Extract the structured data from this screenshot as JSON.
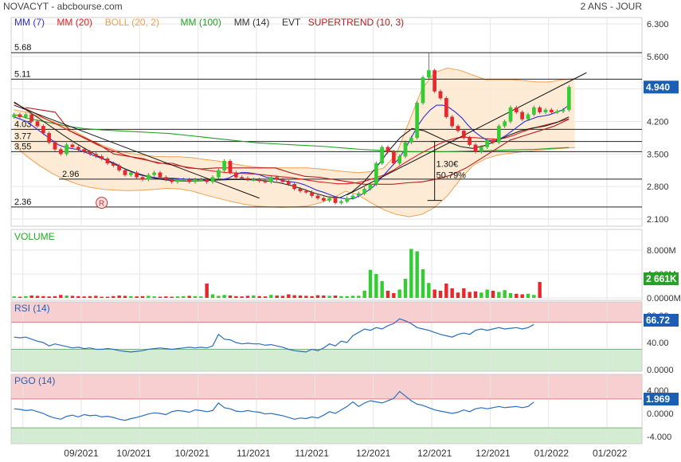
{
  "header": {
    "title": "NOVACYT - abcbourse.com",
    "period": "2 ANS - JOUR"
  },
  "colors": {
    "grid": "#e6e6e6",
    "up": "#33cc33",
    "down": "#e8262c",
    "mm7": "#3030d0",
    "mm20": "#e02020",
    "boll": "#f0a050",
    "mm100": "#20a020",
    "mm14": "#000000",
    "supertrend": "#b02020",
    "value_box": "#1a5fb4",
    "volume_box": "#2aa02a",
    "rsi_line": "#2a6ec0",
    "overbought_fill": "#f7cfd0",
    "oversold_fill": "#d4ecd2",
    "axis_text": "#333333"
  },
  "chart_data": [
    {
      "type": "candlestick",
      "panel": "price",
      "legend": [
        {
          "label": "MM (7)",
          "color": "#3030d0"
        },
        {
          "label": "MM (20)",
          "color": "#e02020"
        },
        {
          "label": "BOLL (20, 2)",
          "color": "#f0a050"
        },
        {
          "label": "MM (100)",
          "color": "#20a020"
        },
        {
          "label": "MM (14)",
          "color": "#333333"
        },
        {
          "label": "EVT",
          "color": "#333333"
        },
        {
          "label": "SUPERTREND (10, 3)",
          "color": "#b02020"
        }
      ],
      "y_ticks": [
        "6.300",
        "5.600",
        "4.900",
        "4.200",
        "3.500",
        "2.800",
        "2.100"
      ],
      "ylim": [
        2.1,
        6.3
      ],
      "last_value": "4.940",
      "levels": [
        {
          "label": "5.68",
          "value": 5.68
        },
        {
          "label": "5.11",
          "value": 5.11
        },
        {
          "label": "4.03",
          "value": 4.03
        },
        {
          "label": "3.77",
          "value": 3.77
        },
        {
          "label": "3.55",
          "value": 3.55
        },
        {
          "label": "2.96",
          "value": 2.96
        },
        {
          "label": "2.36",
          "value": 2.36
        }
      ],
      "annotations": [
        {
          "label": "1.30€",
          "x": 72,
          "y": 3.22
        },
        {
          "label": "50.79%",
          "x": 72,
          "y": 2.98
        },
        {
          "label": "R",
          "x": 15,
          "y": 2.45
        }
      ],
      "closes": [
        4.35,
        4.3,
        4.35,
        4.2,
        4.1,
        3.95,
        3.75,
        3.6,
        3.5,
        3.7,
        3.65,
        3.6,
        3.55,
        3.5,
        3.45,
        3.4,
        3.3,
        3.25,
        3.15,
        3.05,
        3.1,
        3.0,
        2.95,
        3.05,
        3.1,
        3.0,
        2.95,
        2.9,
        2.95,
        2.95,
        2.9,
        2.95,
        2.95,
        2.9,
        3.0,
        3.15,
        3.35,
        3.1,
        3.0,
        2.98,
        2.95,
        2.95,
        2.92,
        2.9,
        3.0,
        2.95,
        2.9,
        2.85,
        2.75,
        2.7,
        2.68,
        2.6,
        2.55,
        2.5,
        2.55,
        2.45,
        2.48,
        2.55,
        2.6,
        2.65,
        2.75,
        2.85,
        3.3,
        3.65,
        3.55,
        3.3,
        3.45,
        3.75,
        3.85,
        4.6,
        5.15,
        5.3,
        4.85,
        4.7,
        4.3,
        4.1,
        4.0,
        3.85,
        3.7,
        3.55,
        3.65,
        3.8,
        3.75,
        4.1,
        4.2,
        4.5,
        4.4,
        4.25,
        4.35,
        4.5,
        4.4,
        4.45,
        4.4,
        4.42,
        4.45,
        4.94
      ],
      "mm7": [
        4.3,
        4.25,
        4.2,
        4.1,
        4.0,
        3.9,
        3.8,
        3.7,
        3.65,
        3.62,
        3.6,
        3.55,
        3.5,
        3.45,
        3.4,
        3.35,
        3.3,
        3.22,
        3.15,
        3.1,
        3.05,
        3.02,
        3.0,
        2.98,
        2.98,
        2.98,
        2.97,
        2.96,
        2.95,
        2.95,
        2.95,
        2.94,
        2.94,
        2.95,
        2.98,
        3.05,
        3.1,
        3.1,
        3.08,
        3.05,
        3.0,
        2.98,
        2.95,
        2.92,
        2.9,
        2.88,
        2.84,
        2.78,
        2.72,
        2.68,
        2.63,
        2.58,
        2.55,
        2.53,
        2.55,
        2.62,
        2.7,
        2.8,
        2.95,
        3.1,
        3.25,
        3.4,
        3.6,
        3.85,
        4.1,
        4.3,
        4.45,
        4.55,
        4.55,
        4.5,
        4.4,
        4.28,
        4.12,
        3.98,
        3.88,
        3.8,
        3.78,
        3.82,
        3.9,
        4.0,
        4.1,
        4.2,
        4.25,
        4.3,
        4.32,
        4.35,
        4.4,
        4.45,
        4.55
      ],
      "mm20": [
        4.6,
        4.5,
        4.4,
        4.3,
        4.2,
        4.1,
        4.0,
        3.9,
        3.8,
        3.7,
        3.62,
        3.55,
        3.48,
        3.42,
        3.38,
        3.34,
        3.3,
        3.27,
        3.24,
        3.21,
        3.18,
        3.15,
        3.12,
        3.1,
        3.09,
        3.08,
        3.07,
        3.05,
        3.03,
        3.01,
        2.99,
        2.96,
        2.93,
        2.9,
        2.88,
        2.86,
        2.86,
        2.88,
        2.92,
        2.98,
        3.05,
        3.15,
        3.28,
        3.4,
        3.52,
        3.62,
        3.72,
        3.8,
        3.85,
        3.86,
        3.85,
        3.83,
        3.82,
        3.84,
        3.9,
        3.98,
        4.05,
        4.1,
        4.15,
        4.2,
        4.26
      ],
      "mm100": [
        4.35,
        4.25,
        4.18,
        4.1,
        4.05,
        4.02,
        4.0,
        3.98,
        3.96,
        3.94,
        3.9,
        3.86,
        3.82,
        3.78,
        3.74,
        3.72,
        3.7,
        3.68,
        3.66,
        3.63,
        3.6,
        3.58,
        3.56,
        3.55,
        3.55,
        3.55,
        3.56,
        3.57,
        3.58,
        3.59,
        3.6,
        3.62,
        3.64
      ],
      "mm14": [
        4.62,
        4.45,
        4.28,
        4.1,
        3.92,
        3.75,
        3.6,
        3.45,
        3.32,
        3.2,
        3.1,
        3.02,
        2.96,
        2.93,
        2.92,
        2.92,
        2.93,
        2.94,
        2.95,
        2.95,
        2.94,
        2.92,
        2.88,
        2.82,
        2.74,
        2.65,
        2.58,
        2.56,
        2.68,
        2.9,
        3.2,
        3.55,
        3.85,
        4.05,
        4.0,
        3.88,
        3.76,
        3.66,
        3.62,
        3.68,
        3.78,
        3.9,
        4.0,
        4.06,
        4.1,
        4.18,
        4.3
      ],
      "boll_upper": [
        4.45,
        4.4,
        4.3,
        4.2,
        4.1,
        3.95,
        3.8,
        3.68,
        3.58,
        3.52,
        3.48,
        3.45,
        3.44,
        3.44,
        3.42,
        3.38,
        3.35,
        3.3,
        3.25,
        3.22,
        3.2,
        3.2,
        3.2,
        3.2,
        3.18,
        3.15,
        3.12,
        3.1,
        3.12,
        3.2,
        3.5,
        4.2,
        4.9,
        5.25,
        5.35,
        5.3,
        5.2,
        5.1,
        5.1,
        5.1,
        5.08,
        5.05,
        5.05,
        5.1,
        5.12
      ],
      "boll_lower": [
        3.7,
        3.45,
        3.25,
        3.08,
        2.95,
        2.85,
        2.78,
        2.74,
        2.72,
        2.71,
        2.72,
        2.74,
        2.76,
        2.75,
        2.7,
        2.62,
        2.55,
        2.48,
        2.42,
        2.38,
        2.36,
        2.35,
        2.36,
        2.38,
        2.45,
        2.55,
        2.7,
        2.62,
        2.45,
        2.3,
        2.2,
        2.15,
        2.2,
        2.35,
        2.6,
        2.95,
        3.25,
        3.4,
        3.48,
        3.52,
        3.55,
        3.58,
        3.6,
        3.62,
        3.64
      ],
      "supertrend": [
        4.5,
        4.45,
        4.4,
        4.0,
        3.85,
        3.7,
        3.5,
        3.45,
        3.4,
        3.3,
        3.3,
        3.2,
        3.18,
        3.2,
        3.2,
        3.2,
        3.2,
        3.2,
        3.1,
        3.02,
        3.0,
        2.95,
        2.9,
        2.85,
        2.85,
        2.85,
        2.88,
        2.9,
        2.96,
        3.05,
        3.2,
        3.4,
        3.6,
        3.8,
        3.9,
        4.0,
        4.1,
        4.25
      ],
      "evt": "2.50 → 3.80 (+1.30€, 50.79%)"
    },
    {
      "type": "bar",
      "panel": "volume",
      "title": "VOLUME",
      "y_ticks": [
        "8.000M",
        "4.000M",
        "0.0000M"
      ],
      "ylim": [
        0,
        8000000
      ],
      "last_value": "2 661K",
      "values": [
        0.25,
        0.2,
        0.3,
        0.4,
        0.35,
        0.3,
        0.25,
        0.3,
        0.5,
        0.4,
        0.35,
        0.3,
        0.25,
        0.3,
        0.35,
        0.2,
        0.2,
        0.3,
        0.4,
        0.35,
        0.3,
        0.25,
        0.3,
        0.35,
        0.25,
        0.2,
        0.25,
        0.2,
        0.25,
        0.3,
        0.35,
        0.3,
        0.25,
        2.4,
        0.6,
        0.35,
        0.5,
        0.4,
        0.3,
        0.25,
        0.35,
        0.4,
        0.3,
        0.25,
        0.5,
        0.4,
        0.35,
        0.6,
        0.45,
        0.4,
        0.35,
        0.3,
        0.45,
        0.4,
        0.35,
        0.4,
        0.3,
        0.3,
        0.35,
        0.35,
        1.2,
        4.7,
        4.0,
        2.8,
        1.2,
        0.8,
        1.4,
        3.2,
        8.2,
        7.8,
        4.8,
        2.5,
        1.4,
        1.2,
        2.4,
        1.6,
        0.9,
        1.6,
        1.0,
        1.1,
        0.9,
        1.4,
        1.2,
        1.0,
        1.3,
        0.8,
        0.7,
        0.6,
        0.7,
        0.5,
        2.66
      ]
    },
    {
      "type": "line",
      "panel": "rsi",
      "title": "RSI (14)",
      "y_ticks": [
        "80.00",
        "40.00",
        "0.0000"
      ],
      "ylim": [
        0,
        100
      ],
      "bands": [
        70,
        30
      ],
      "last_value": "66.72",
      "values": [
        48,
        47,
        48,
        45,
        42,
        40,
        35,
        38,
        36,
        34,
        32,
        33,
        31,
        32,
        30,
        30,
        31,
        30,
        28,
        27,
        26,
        27,
        28,
        30,
        31,
        32,
        31,
        30,
        31,
        32,
        33,
        32,
        33,
        32,
        35,
        52,
        45,
        44,
        40,
        38,
        39,
        38,
        38,
        36,
        37,
        35,
        33,
        30,
        28,
        27,
        26,
        30,
        28,
        32,
        38,
        35,
        42,
        40,
        50,
        55,
        60,
        58,
        62,
        60,
        65,
        68,
        75,
        72,
        68,
        62,
        60,
        58,
        55,
        52,
        50,
        48,
        52,
        54,
        52,
        58,
        60,
        58,
        60,
        62,
        60,
        61,
        62,
        60,
        62,
        66.72
      ]
    },
    {
      "type": "line",
      "panel": "pgo",
      "title": "PGO (14)",
      "y_ticks": [
        "4.000",
        "0.0000",
        "-4.000"
      ],
      "ylim": [
        -6,
        6
      ],
      "bands": [
        2.5,
        -2.5
      ],
      "last_value": "1.969",
      "values": [
        0.8,
        0.7,
        0.5,
        0.6,
        0.3,
        0.0,
        -0.5,
        -0.8,
        -1.0,
        -0.5,
        -0.3,
        -0.6,
        -0.2,
        -0.4,
        -0.3,
        -0.6,
        -0.5,
        -0.7,
        -1.0,
        -1.2,
        -0.9,
        -0.7,
        -0.4,
        -0.1,
        0.1,
        0.0,
        -0.2,
        0.3,
        0.5,
        0.4,
        0.2,
        0.6,
        0.5,
        0.3,
        0.5,
        1.8,
        1.0,
        0.8,
        0.4,
        0.3,
        0.5,
        0.3,
        0.2,
        -0.1,
        0.0,
        -0.2,
        -0.4,
        -0.7,
        -1.0,
        -0.8,
        -0.9,
        -0.6,
        -0.8,
        -0.3,
        0.3,
        0.0,
        0.6,
        1.2,
        2.0,
        1.2,
        1.8,
        2.2,
        2.0,
        1.8,
        2.2,
        2.6,
        3.8,
        3.0,
        2.2,
        1.6,
        1.4,
        1.0,
        0.6,
        0.4,
        0.2,
        0.0,
        0.2,
        0.6,
        0.3,
        0.8,
        1.0,
        0.8,
        1.0,
        1.2,
        1.0,
        1.1,
        1.2,
        1.0,
        1.2,
        1.969
      ]
    }
  ],
  "x_axis": {
    "labels": [
      "09/2021",
      "10/2021",
      "10/2021",
      "11/2021",
      "11/2021",
      "12/2021",
      "12/2021",
      "12/2021",
      "01/2022",
      "01/2022"
    ],
    "positions": [
      0,
      1,
      2,
      3,
      4,
      5,
      6,
      7,
      8,
      9
    ]
  }
}
